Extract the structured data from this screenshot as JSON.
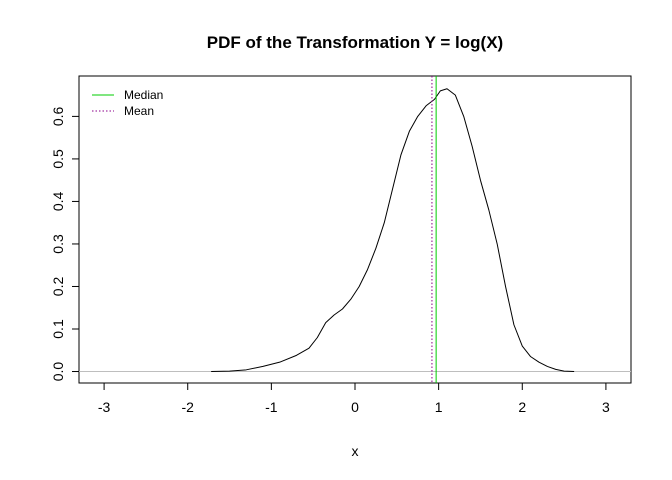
{
  "chart_data": {
    "type": "line",
    "title": "PDF of the Transformation Y = log(X)",
    "xlabel": "x",
    "ylabel": "",
    "xlim": [
      -3.3,
      3.3
    ],
    "ylim": [
      -0.027,
      0.695
    ],
    "x_ticks": [
      -3,
      -2,
      -1,
      0,
      1,
      2,
      3
    ],
    "y_ticks": [
      0.0,
      0.1,
      0.2,
      0.3,
      0.4,
      0.5,
      0.6
    ],
    "x_tick_labels": [
      "-3",
      "-2",
      "-1",
      "0",
      "1",
      "2",
      "3"
    ],
    "y_tick_labels": [
      "0.0",
      "0.1",
      "0.2",
      "0.3",
      "0.4",
      "0.5",
      "0.6"
    ],
    "grid": false,
    "legend_position": "top-left",
    "legend": [
      {
        "label": "Median",
        "color": "#00cc00",
        "style": "solid"
      },
      {
        "label": "Mean",
        "color": "#8b008b",
        "style": "dotted"
      }
    ],
    "baseline": {
      "y": 0,
      "color": "#bebebe"
    },
    "series": [
      {
        "color": "#000000",
        "x": [
          -1.72,
          -1.5,
          -1.3,
          -1.1,
          -0.9,
          -0.7,
          -0.55,
          -0.45,
          -0.35,
          -0.25,
          -0.15,
          -0.05,
          0.05,
          0.15,
          0.25,
          0.35,
          0.45,
          0.55,
          0.65,
          0.75,
          0.85,
          0.95,
          1.02,
          1.1,
          1.2,
          1.3,
          1.4,
          1.5,
          1.6,
          1.7,
          1.8,
          1.9,
          2.0,
          2.1,
          2.2,
          2.3,
          2.4,
          2.5,
          2.62
        ],
        "y": [
          0.0,
          0.001,
          0.004,
          0.012,
          0.022,
          0.038,
          0.055,
          0.08,
          0.115,
          0.133,
          0.147,
          0.17,
          0.2,
          0.24,
          0.29,
          0.35,
          0.43,
          0.51,
          0.565,
          0.6,
          0.625,
          0.64,
          0.66,
          0.665,
          0.65,
          0.6,
          0.53,
          0.45,
          0.38,
          0.3,
          0.2,
          0.11,
          0.06,
          0.035,
          0.022,
          0.012,
          0.005,
          0.001,
          0.0
        ]
      }
    ],
    "vlines": [
      {
        "name": "Median",
        "x": 0.97,
        "color": "#00cc00",
        "style": "solid"
      },
      {
        "name": "Mean",
        "x": 0.92,
        "color": "#8b008b",
        "style": "dotted"
      }
    ]
  }
}
